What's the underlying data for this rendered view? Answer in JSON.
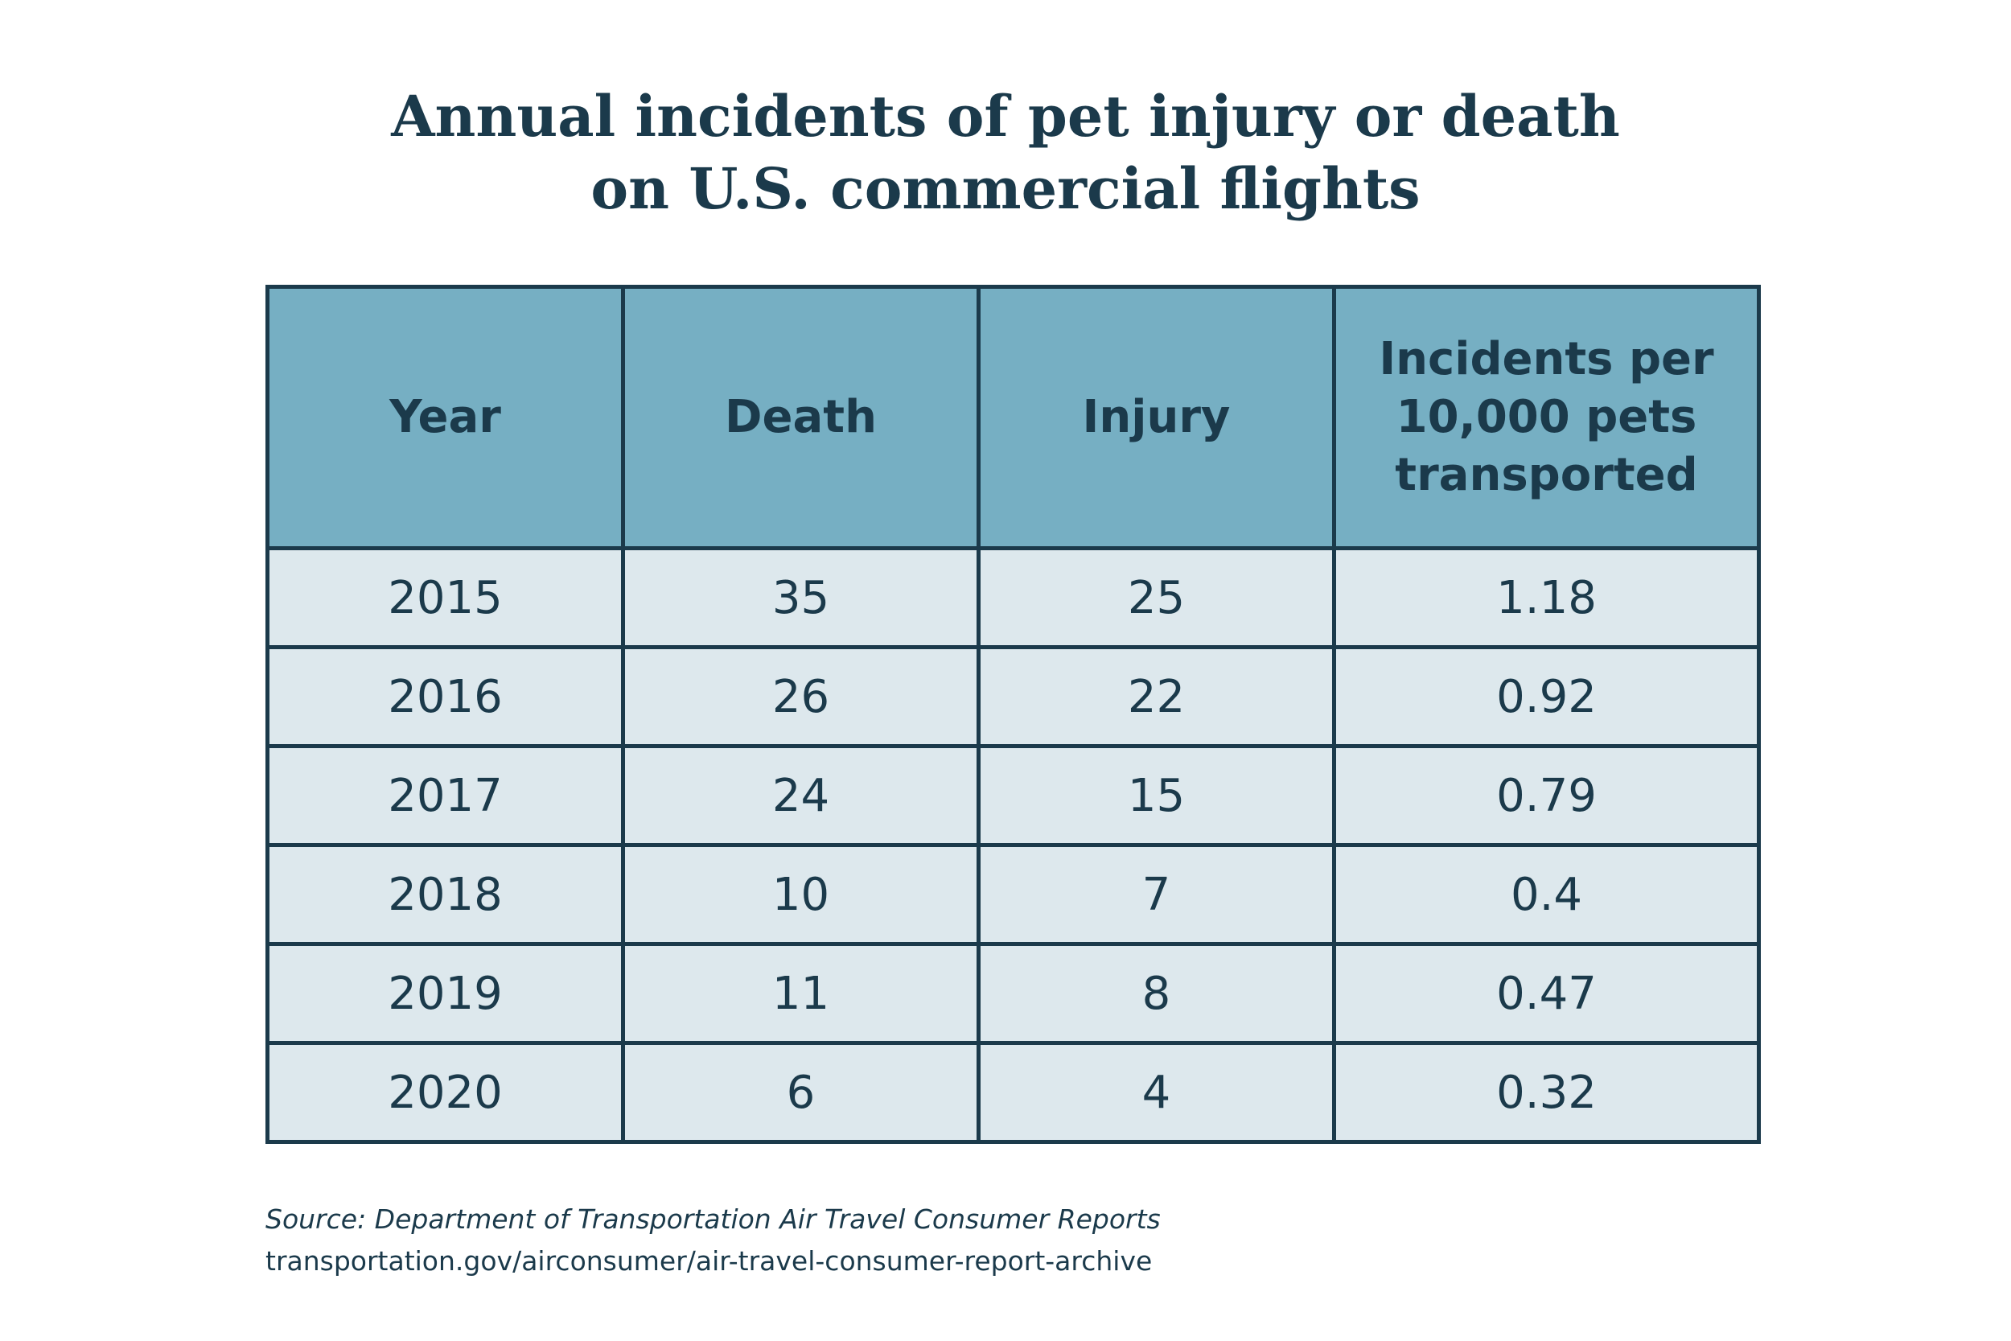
{
  "chart_data": {
    "type": "table",
    "title": [
      "Annual incidents of pet injury or death",
      "on U.S. commercial flights"
    ],
    "columns": [
      "Year",
      "Death",
      "Injury",
      "Incidents per 10,000 pets transported"
    ],
    "rows": [
      [
        "2015",
        "35",
        "25",
        "1.18"
      ],
      [
        "2016",
        "26",
        "22",
        "0.92"
      ],
      [
        "2017",
        "24",
        "15",
        "0.79"
      ],
      [
        "2018",
        "10",
        "7",
        "0.4"
      ],
      [
        "2019",
        "11",
        "8",
        "0.47"
      ],
      [
        "2020",
        "6",
        "4",
        "0.32"
      ]
    ],
    "header_color": "#76afc3",
    "cell_color": "#dde8ed",
    "text_color": "#1b3a4b"
  },
  "source": {
    "line1": "Source: Department of Transportation Air Travel Consumer Reports",
    "line2": "transportation.gov/airconsumer/air-travel-consumer-report-archive"
  }
}
